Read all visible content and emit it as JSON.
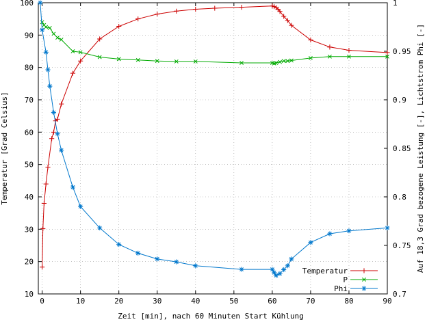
{
  "chart_data": {
    "type": "line",
    "title": "",
    "xlabel": "Zeit [min], nach 60 Minuten Start Kühlung",
    "ylabel": "Temperatur [Grad Celsius]",
    "y2label": "Auf 18,3 Grad bezogene Leistung [-], Lichtstrom Phi [-]",
    "xlim": [
      -1,
      90
    ],
    "ylim": [
      10,
      100
    ],
    "y2lim": [
      0.7,
      1.0
    ],
    "x_ticks": [
      0,
      10,
      20,
      30,
      40,
      50,
      60,
      70,
      80,
      90
    ],
    "y_ticks": [
      10,
      20,
      30,
      40,
      50,
      60,
      70,
      80,
      90,
      100
    ],
    "y2_ticks": [
      0.7,
      0.75,
      0.8,
      0.85,
      0.9,
      0.95,
      1.0
    ],
    "y2_tick_labels": [
      "0.7",
      "0.75",
      "0.8",
      "0.85",
      "0.9",
      "0.95",
      "1"
    ],
    "grid": true,
    "legend_position": "bottom-right",
    "series": [
      {
        "name": "Temperatur",
        "axis": "left",
        "marker": "plus",
        "color": "#cc0000",
        "points": [
          [
            0,
            18.3
          ],
          [
            0.2,
            30.2
          ],
          [
            0.5,
            38
          ],
          [
            1,
            44
          ],
          [
            1.5,
            49.2
          ],
          [
            2.5,
            58
          ],
          [
            3,
            60
          ],
          [
            3.5,
            63.5
          ],
          [
            4,
            64
          ],
          [
            5,
            68.7
          ],
          [
            8,
            78.2
          ],
          [
            10,
            82
          ],
          [
            15,
            88.8
          ],
          [
            20,
            92.7
          ],
          [
            25,
            95
          ],
          [
            30,
            96.5
          ],
          [
            35,
            97.4
          ],
          [
            40,
            98
          ],
          [
            45,
            98.3
          ],
          [
            52,
            98.6
          ],
          [
            60,
            99
          ],
          [
            60.5,
            98.8
          ],
          [
            61,
            98.5
          ],
          [
            61.5,
            98
          ],
          [
            62,
            97.3
          ],
          [
            63,
            95.8
          ],
          [
            64,
            94.5
          ],
          [
            65,
            93
          ],
          [
            70,
            88.5
          ],
          [
            75,
            86.3
          ],
          [
            80,
            85.3
          ],
          [
            90,
            84.6
          ]
        ]
      },
      {
        "name": "P",
        "axis": "right",
        "marker": "cross",
        "color": "#00aa00",
        "points": [
          [
            0,
            0.98
          ],
          [
            0.5,
            0.977
          ],
          [
            1,
            0.975
          ],
          [
            2,
            0.974
          ],
          [
            3,
            0.968
          ],
          [
            4,
            0.964
          ],
          [
            5,
            0.962
          ],
          [
            8,
            0.95
          ],
          [
            10,
            0.949
          ],
          [
            15,
            0.944
          ],
          [
            20,
            0.942
          ],
          [
            25,
            0.941
          ],
          [
            30,
            0.94
          ],
          [
            35,
            0.9395
          ],
          [
            40,
            0.9395
          ],
          [
            52,
            0.938
          ],
          [
            60,
            0.938
          ],
          [
            60.5,
            0.9375
          ],
          [
            61,
            0.938
          ],
          [
            62,
            0.939
          ],
          [
            63,
            0.94
          ],
          [
            64,
            0.94
          ],
          [
            65,
            0.9405
          ],
          [
            70,
            0.943
          ],
          [
            75,
            0.9445
          ],
          [
            80,
            0.9445
          ],
          [
            90,
            0.9445
          ]
        ]
      },
      {
        "name": "Phi",
        "axis": "right",
        "marker": "star",
        "color": "#0077cc",
        "points": [
          [
            -0.5,
            1.0
          ],
          [
            0,
            0.972
          ],
          [
            1,
            0.949
          ],
          [
            1.5,
            0.931
          ],
          [
            2,
            0.914
          ],
          [
            3,
            0.887
          ],
          [
            4,
            0.865
          ],
          [
            5,
            0.848
          ],
          [
            8,
            0.81
          ],
          [
            10,
            0.79
          ],
          [
            15,
            0.768
          ],
          [
            20,
            0.751
          ],
          [
            25,
            0.742
          ],
          [
            30,
            0.736
          ],
          [
            35,
            0.733
          ],
          [
            40,
            0.729
          ],
          [
            52,
            0.7253
          ],
          [
            60,
            0.7253
          ],
          [
            60.5,
            0.722
          ],
          [
            61,
            0.719
          ],
          [
            62,
            0.721
          ],
          [
            63,
            0.725
          ],
          [
            64,
            0.729
          ],
          [
            65,
            0.736
          ],
          [
            70,
            0.753
          ],
          [
            75,
            0.762
          ],
          [
            80,
            0.765
          ],
          [
            90,
            0.768
          ]
        ]
      }
    ]
  }
}
